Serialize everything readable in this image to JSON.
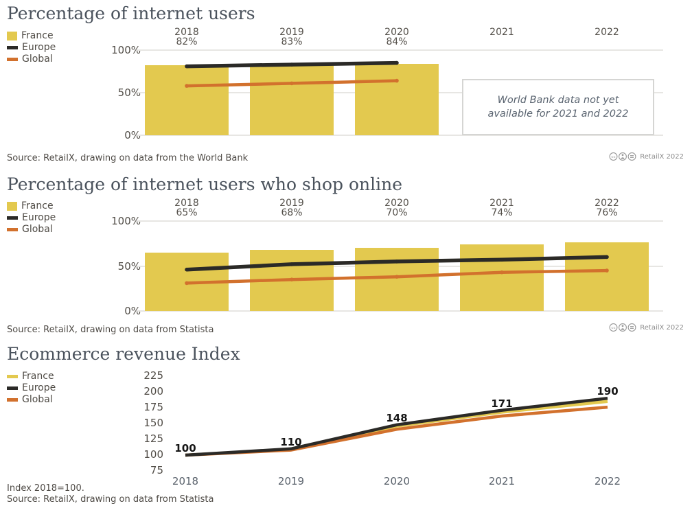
{
  "charts": [
    {
      "note": [
        "World Bank data not yet",
        "available for 2021 and 2022"
      ],
      "source": "Source: RetailX, drawing on data from the World Bank",
      "credit": "RetailX 2022",
      "license_icons": [
        "cc-icon",
        "attribution-icon",
        "equal-icon"
      ]
    },
    {
      "source": "Source: RetailX, drawing on data from Statista",
      "credit": "RetailX 2022",
      "license_icons": [
        "cc-icon",
        "attribution-icon",
        "equal-icon"
      ]
    },
    {
      "footnote": "Index 2018=100.",
      "source": "Source: RetailX, drawing on data from Statista"
    }
  ],
  "chart_data": [
    {
      "type": "bar",
      "title": "Percentage of internet users",
      "categories": [
        "2018",
        "2019",
        "2020",
        "2021",
        "2022"
      ],
      "bar_value_labels": [
        "82%",
        "83%",
        "84%",
        "",
        ""
      ],
      "series": [
        {
          "name": "France",
          "type": "bar",
          "color": "#e3c94f",
          "values": [
            82,
            83,
            84,
            null,
            null
          ]
        },
        {
          "name": "Europe",
          "type": "line",
          "color": "#2b2a27",
          "values": [
            81,
            83,
            85,
            null,
            null
          ]
        },
        {
          "name": "Global",
          "type": "line",
          "color": "#d2712d",
          "values": [
            58,
            61,
            64,
            null,
            null
          ]
        }
      ],
      "yticks": [
        {
          "label": "100%",
          "value": 100
        },
        {
          "label": "50%",
          "value": 50
        },
        {
          "label": "0%",
          "value": 0
        }
      ],
      "ylim": [
        0,
        100
      ],
      "grid": "horizontal",
      "legend_position": "top-left",
      "annotation": "World Bank data not yet available for 2021 and 2022"
    },
    {
      "type": "bar",
      "title": "Percentage of internet users who shop online",
      "categories": [
        "2018",
        "2019",
        "2020",
        "2021",
        "2022"
      ],
      "bar_value_labels": [
        "65%",
        "68%",
        "70%",
        "74%",
        "76%"
      ],
      "series": [
        {
          "name": "France",
          "type": "bar",
          "color": "#e3c94f",
          "values": [
            65,
            68,
            70,
            74,
            76
          ]
        },
        {
          "name": "Europe",
          "type": "line",
          "color": "#2b2a27",
          "values": [
            46,
            52,
            55,
            57,
            60
          ]
        },
        {
          "name": "Global",
          "type": "line",
          "color": "#d2712d",
          "values": [
            31,
            35,
            38,
            43,
            45
          ]
        }
      ],
      "yticks": [
        {
          "label": "100%",
          "value": 100
        },
        {
          "label": "50%",
          "value": 50
        },
        {
          "label": "0%",
          "value": 0
        }
      ],
      "ylim": [
        0,
        100
      ],
      "grid": "horizontal",
      "legend_position": "top-left"
    },
    {
      "type": "line",
      "title": "Ecommerce revenue Index",
      "x": [
        "2018",
        "2019",
        "2020",
        "2021",
        "2022"
      ],
      "series": [
        {
          "name": "France",
          "color": "#e3c94f",
          "values": [
            100,
            109,
            146,
            168,
            185
          ]
        },
        {
          "name": "Europe",
          "color": "#2b2a27",
          "values": [
            100,
            110,
            148,
            171,
            190
          ]
        },
        {
          "name": "Global",
          "color": "#d2712d",
          "values": [
            100,
            108,
            141,
            162,
            176
          ]
        }
      ],
      "point_labels": [
        "100",
        "110",
        "148",
        "171",
        "190"
      ],
      "point_labels_series": "Europe",
      "yticks": [
        225,
        200,
        175,
        150,
        125,
        100,
        75
      ],
      "ylim": [
        75,
        235
      ],
      "grid": "off",
      "legend_position": "top-left",
      "note": "Index 2018=100."
    }
  ]
}
